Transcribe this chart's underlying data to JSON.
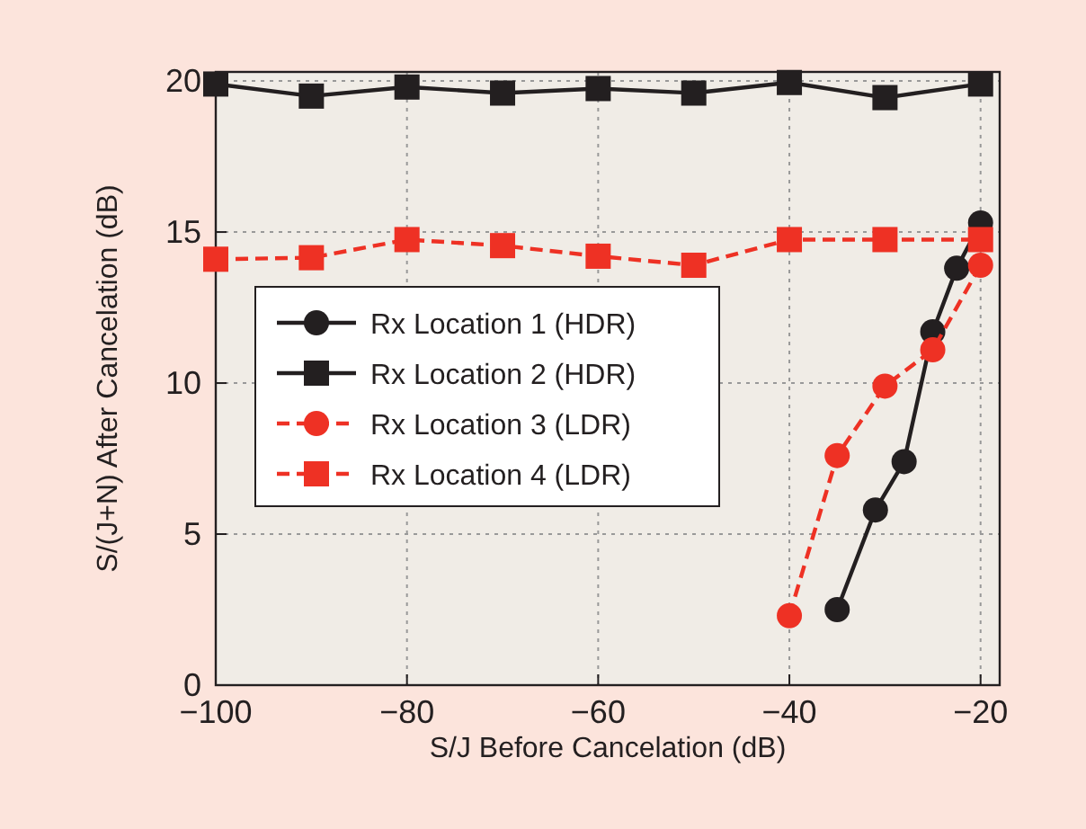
{
  "chart_data": {
    "type": "line",
    "xlabel": "S/J Before Cancelation (dB)",
    "ylabel": "S/(J+N) After Cancelation (dB)",
    "xlim": [
      -100,
      -18
    ],
    "ylim": [
      0,
      20.3
    ],
    "xticks": [
      {
        "value": -100,
        "label": "−100"
      },
      {
        "value": -80,
        "label": "−80"
      },
      {
        "value": -60,
        "label": "−60"
      },
      {
        "value": -40,
        "label": "−40"
      },
      {
        "value": -20,
        "label": "−20"
      }
    ],
    "yticks": [
      0,
      5,
      10,
      15,
      20
    ],
    "grid": true,
    "legend": "center left",
    "series": [
      {
        "name": "Rx Location 1 (HDR)",
        "color": "#231f20",
        "marker": "circle",
        "line_style": "solid",
        "x": [
          -35,
          -31,
          -28,
          -25,
          -22.5,
          -20
        ],
        "values": [
          2.5,
          5.8,
          7.4,
          11.7,
          13.8,
          15.3
        ]
      },
      {
        "name": "Rx Location 2 (HDR)",
        "color": "#231f20",
        "marker": "square",
        "line_style": "solid",
        "x": [
          -100,
          -90,
          -80,
          -70,
          -60,
          -50,
          -40,
          -30,
          -20
        ],
        "values": [
          19.9,
          19.5,
          19.8,
          19.6,
          19.75,
          19.6,
          19.95,
          19.45,
          19.9
        ]
      },
      {
        "name": "Rx Location 3 (LDR)",
        "color": "#ee3124",
        "marker": "circle",
        "line_style": "dashed",
        "x": [
          -40,
          -35,
          -30,
          -25,
          -20
        ],
        "values": [
          2.3,
          7.6,
          9.9,
          11.1,
          13.9
        ]
      },
      {
        "name": "Rx Location 4 (LDR)",
        "color": "#ee3124",
        "marker": "square",
        "line_style": "dashed",
        "x": [
          -100,
          -90,
          -80,
          -70,
          -60,
          -50,
          -40,
          -30,
          -20
        ],
        "values": [
          14.1,
          14.15,
          14.75,
          14.55,
          14.2,
          13.9,
          14.75,
          14.75,
          14.75
        ]
      }
    ]
  }
}
